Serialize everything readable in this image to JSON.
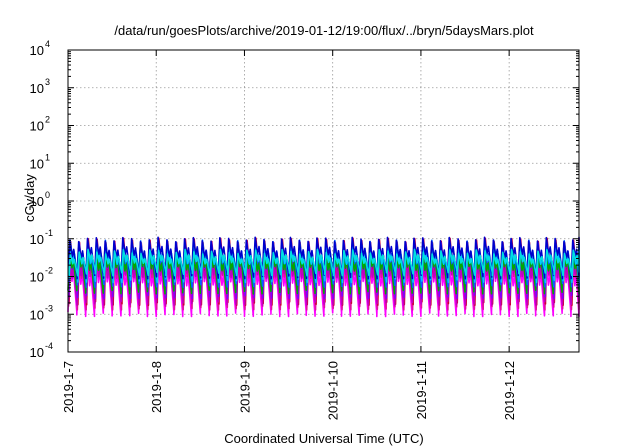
{
  "chart_data": {
    "type": "line",
    "title": "/data/run/goesPlots/archive/2019-01-12/19:00/flux/../bryn/5daysMars.plot",
    "xlabel": "Coordinated Universal Time (UTC)",
    "ylabel": "cGy/day",
    "yscale": "log",
    "ylim": [
      0.0001,
      10000
    ],
    "xlim": [
      "2019-01-07T00:00",
      "2019-01-12T19:00"
    ],
    "grid": true,
    "legend": "none",
    "y_ticks": [
      {
        "base": "10",
        "exp": "-4",
        "value": 0.0001
      },
      {
        "base": "10",
        "exp": "-3",
        "value": 0.001
      },
      {
        "base": "10",
        "exp": "-2",
        "value": 0.01
      },
      {
        "base": "10",
        "exp": "-1",
        "value": 0.1
      },
      {
        "base": "10",
        "exp": "0",
        "value": 1
      },
      {
        "base": "10",
        "exp": "1",
        "value": 10
      },
      {
        "base": "10",
        "exp": "2",
        "value": 100
      },
      {
        "base": "10",
        "exp": "3",
        "value": 1000
      },
      {
        "base": "10",
        "exp": "4",
        "value": 10000
      }
    ],
    "x_ticks": [
      "2019-1-7",
      "2019-1-8",
      "2019-1-9",
      "2019-1-10",
      "2019-1-11",
      "2019-1-12"
    ],
    "pattern": {
      "description_values": "Sawtooth-like periodic dose-rate traces, roughly 10 cycles per day",
      "cycles_per_day": 10,
      "peak_value": 0.1,
      "trough_value": 0.001
    },
    "series": [
      {
        "color": "#ff00ff",
        "peak": 0.03,
        "trough": 0.001
      },
      {
        "color": "#e0149a",
        "peak": 0.05,
        "trough": 0.0015
      },
      {
        "color": "#cc0033",
        "peak": 0.09,
        "trough": 0.002
      },
      {
        "color": "#c000c0",
        "peak": 0.04,
        "trough": 0.002
      },
      {
        "color": "#8000ff",
        "peak": 0.07,
        "trough": 0.003
      },
      {
        "color": "#00aa00",
        "peak": 0.05,
        "trough": 0.004
      },
      {
        "color": "#0066ff",
        "peak": 0.08,
        "trough": 0.006
      },
      {
        "color": "#00ccff",
        "peak": 0.06,
        "trough": 0.008
      },
      {
        "color": "#0000cc",
        "peak": 0.095,
        "trough": 0.01
      },
      {
        "color": "#00e0e0",
        "peak": 0.045,
        "trough": 0.012
      }
    ]
  }
}
